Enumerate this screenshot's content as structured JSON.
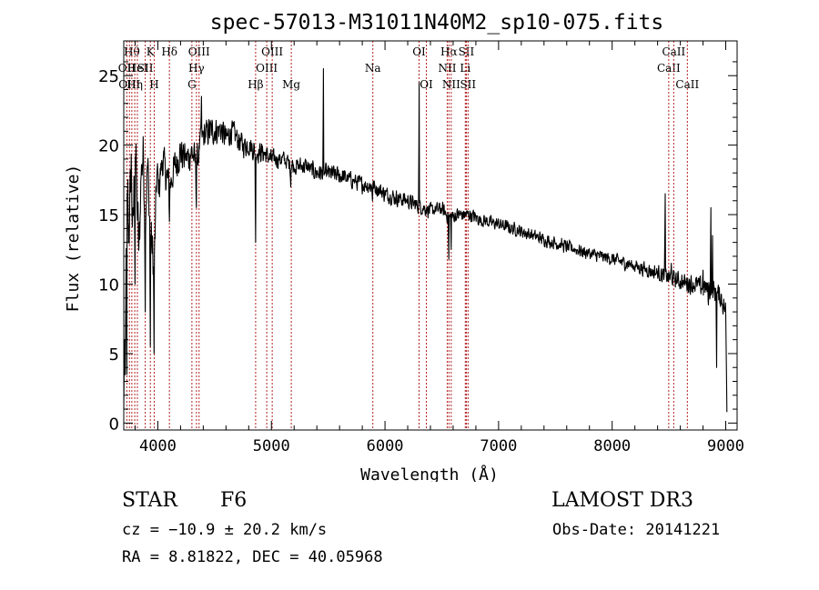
{
  "chart_data": {
    "type": "line",
    "title": "spec-57013-M31011N40M2_sp10-075.fits",
    "xlabel": "Wavelength (Å)",
    "ylabel": "Flux (relative)",
    "xlim": [
      3700,
      9100
    ],
    "ylim": [
      -0.5,
      27.5
    ],
    "x_ticks": [
      4000,
      5000,
      6000,
      7000,
      8000,
      9000
    ],
    "y_ticks": [
      0,
      5,
      10,
      15,
      20,
      25
    ],
    "series": [
      {
        "name": "flux",
        "anchors": [
          [
            3700,
            0.5
          ],
          [
            3705,
            6.5
          ],
          [
            3712,
            2.0
          ],
          [
            3720,
            11.5
          ],
          [
            3735,
            17.0
          ],
          [
            3750,
            14.0
          ],
          [
            3765,
            19.0
          ],
          [
            3780,
            13.0
          ],
          [
            3800,
            20.5
          ],
          [
            3815,
            16.5
          ],
          [
            3835,
            12.0
          ],
          [
            3850,
            17.5
          ],
          [
            3870,
            19.5
          ],
          [
            3890,
            15.0
          ],
          [
            3910,
            18.5
          ],
          [
            3930,
            14.5
          ],
          [
            3950,
            12.5
          ],
          [
            3968,
            11.0
          ],
          [
            3990,
            18.0
          ],
          [
            4010,
            17.0
          ],
          [
            4040,
            19.0
          ],
          [
            4070,
            18.0
          ],
          [
            4102,
            17.0
          ],
          [
            4150,
            18.5
          ],
          [
            4200,
            19.5
          ],
          [
            4250,
            19.0
          ],
          [
            4300,
            19.5
          ],
          [
            4340,
            18.5
          ],
          [
            4383,
            20.5
          ],
          [
            4450,
            21.0
          ],
          [
            4500,
            21.0
          ],
          [
            4550,
            21.2
          ],
          [
            4600,
            20.5
          ],
          [
            4650,
            21.0
          ],
          [
            4700,
            20.5
          ],
          [
            4750,
            20.0
          ],
          [
            4800,
            20.0
          ],
          [
            4861,
            19.5
          ],
          [
            4920,
            19.5
          ],
          [
            5000,
            19.0
          ],
          [
            5100,
            19.0
          ],
          [
            5200,
            18.5
          ],
          [
            5300,
            18.5
          ],
          [
            5400,
            18.0
          ],
          [
            5500,
            18.0
          ],
          [
            5600,
            17.8
          ],
          [
            5700,
            17.5
          ],
          [
            5800,
            17.2
          ],
          [
            5900,
            17.0
          ],
          [
            6000,
            16.5
          ],
          [
            6100,
            16.2
          ],
          [
            6200,
            16.0
          ],
          [
            6300,
            15.6
          ],
          [
            6400,
            15.3
          ],
          [
            6500,
            15.4
          ],
          [
            6563,
            14.8
          ],
          [
            6650,
            15.0
          ],
          [
            6750,
            15.0
          ],
          [
            6850,
            14.6
          ],
          [
            7000,
            14.3
          ],
          [
            7200,
            13.8
          ],
          [
            7400,
            13.2
          ],
          [
            7600,
            12.7
          ],
          [
            7800,
            12.2
          ],
          [
            8000,
            11.8
          ],
          [
            8200,
            11.3
          ],
          [
            8400,
            10.8
          ],
          [
            8500,
            10.5
          ],
          [
            8600,
            10.2
          ],
          [
            8700,
            10.0
          ],
          [
            8800,
            9.8
          ],
          [
            8900,
            9.5
          ],
          [
            8960,
            9.0
          ],
          [
            9000,
            8.0
          ],
          [
            9010,
            1.0
          ]
        ],
        "spikes": [
          [
            3728,
            3.5
          ],
          [
            3742,
            13.0
          ],
          [
            3798,
            10.0
          ],
          [
            3889,
            8.0
          ],
          [
            3933,
            5.5
          ],
          [
            3968,
            5.0
          ],
          [
            4101,
            14.5
          ],
          [
            4340,
            15.5
          ],
          [
            4384,
            23.5
          ],
          [
            4861,
            13.0
          ],
          [
            5169,
            17.0
          ],
          [
            5459,
            25.5
          ],
          [
            5889,
            16.0
          ],
          [
            6300,
            24.5
          ],
          [
            6563,
            11.8
          ],
          [
            6584,
            12.5
          ],
          [
            8467,
            16.5
          ],
          [
            8520,
            11.5
          ],
          [
            8800,
            11.0
          ],
          [
            8848,
            8.5
          ],
          [
            8870,
            15.5
          ],
          [
            8885,
            13.5
          ],
          [
            8920,
            4.0
          ]
        ],
        "noise": [
          [
            3700,
            2.5
          ],
          [
            3800,
            2.8
          ],
          [
            3900,
            2.5
          ],
          [
            4000,
            1.7
          ],
          [
            4100,
            1.6
          ],
          [
            4300,
            1.4
          ],
          [
            4500,
            1.2
          ],
          [
            5000,
            0.8
          ],
          [
            6000,
            0.7
          ],
          [
            7000,
            0.55
          ],
          [
            8000,
            0.55
          ],
          [
            8500,
            0.7
          ],
          [
            8800,
            0.9
          ],
          [
            9010,
            1.0
          ]
        ]
      }
    ],
    "line_markers": [
      {
        "wavelength": 3727,
        "label": "OII",
        "row": 1
      },
      {
        "wavelength": 3750,
        "label": "OIII",
        "row": 2
      },
      {
        "wavelength": 3771,
        "label": "Hθ",
        "row": 0
      },
      {
        "wavelength": 3797,
        "label": "Hη",
        "row": 2
      },
      {
        "wavelength": 3820,
        "label": "HeI",
        "row": 1
      },
      {
        "wavelength": 3889,
        "label": "SII",
        "row": 1
      },
      {
        "wavelength": 3934,
        "label": "K",
        "row": 0
      },
      {
        "wavelength": 3968,
        "label": "H",
        "row": 2
      },
      {
        "wavelength": 4102,
        "label": "Hδ",
        "row": 0
      },
      {
        "wavelength": 4300,
        "label": "G",
        "row": 2
      },
      {
        "wavelength": 4340,
        "label": "Hγ",
        "row": 1
      },
      {
        "wavelength": 4363,
        "label": "OIII",
        "row": 0
      },
      {
        "wavelength": 4861,
        "label": "Hβ",
        "row": 2
      },
      {
        "wavelength": 4959,
        "label": "OIII",
        "row": 1
      },
      {
        "wavelength": 5007,
        "label": "OIII",
        "row": 0
      },
      {
        "wavelength": 5175,
        "label": "Mg",
        "row": 2
      },
      {
        "wavelength": 5893,
        "label": "Na",
        "row": 1
      },
      {
        "wavelength": 6300,
        "label": "OI",
        "row": 0
      },
      {
        "wavelength": 6364,
        "label": "OI",
        "row": 2
      },
      {
        "wavelength": 6548,
        "label": "NII",
        "row": 1
      },
      {
        "wavelength": 6563,
        "label": "Hα",
        "row": 0
      },
      {
        "wavelength": 6583,
        "label": "NII",
        "row": 2
      },
      {
        "wavelength": 6707,
        "label": "Li",
        "row": 1
      },
      {
        "wavelength": 6716,
        "label": "SII",
        "row": 0
      },
      {
        "wavelength": 6731,
        "label": "SII",
        "row": 2
      },
      {
        "wavelength": 8498,
        "label": "CaII",
        "row": 1
      },
      {
        "wavelength": 8542,
        "label": "CaII",
        "row": 0
      },
      {
        "wavelength": 8662,
        "label": "CaII",
        "row": 2
      }
    ]
  },
  "info": {
    "object_class": "STAR",
    "subclass": "F6",
    "survey": "LAMOST DR3",
    "redshift_text": "cz = −10.9 ± 20.2 km/s",
    "obs_date_text": "Obs-Date: 20141221",
    "coords_text": "RA =   8.81822, DEC =  40.05968"
  },
  "colors": {
    "spectrum": "#000000",
    "marker": "#b22222",
    "axis": "#000000"
  }
}
